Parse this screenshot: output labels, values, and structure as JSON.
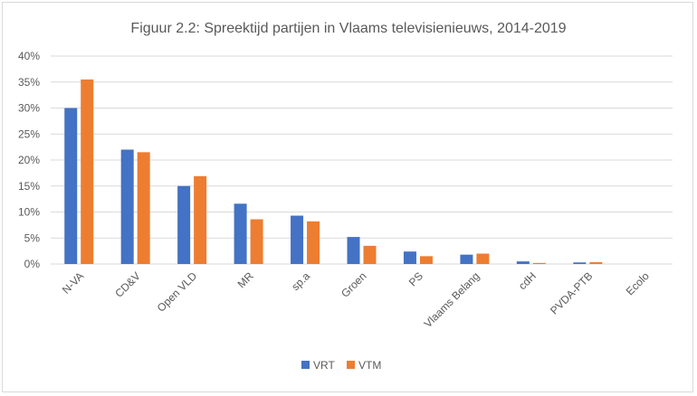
{
  "chart_data": {
    "type": "bar",
    "title": "Figuur 2.2: Spreektijd partijen in Vlaams televisienieuws, 2014-2019",
    "xlabel": "",
    "ylabel": "",
    "categories": [
      "N-VA",
      "CD&V",
      "Open VLD",
      "MR",
      "sp.a",
      "Groen",
      "PS",
      "Vlaams Belang",
      "cdH",
      "PVDA-PTB",
      "Ecolo"
    ],
    "series": [
      {
        "name": "VRT",
        "color": "#4472c4",
        "values": [
          30.0,
          22.0,
          15.0,
          11.6,
          9.3,
          5.2,
          2.4,
          1.8,
          0.5,
          0.3,
          0.0
        ]
      },
      {
        "name": "VTM",
        "color": "#ed7d31",
        "values": [
          35.5,
          21.5,
          16.9,
          8.6,
          8.2,
          3.5,
          1.5,
          2.0,
          0.2,
          0.35,
          0.0
        ]
      }
    ],
    "ylim": [
      0,
      40
    ],
    "yticks": [
      "0%",
      "5%",
      "10%",
      "15%",
      "20%",
      "25%",
      "30%",
      "35%",
      "40%"
    ],
    "grid": true,
    "legend_position": "bottom"
  }
}
